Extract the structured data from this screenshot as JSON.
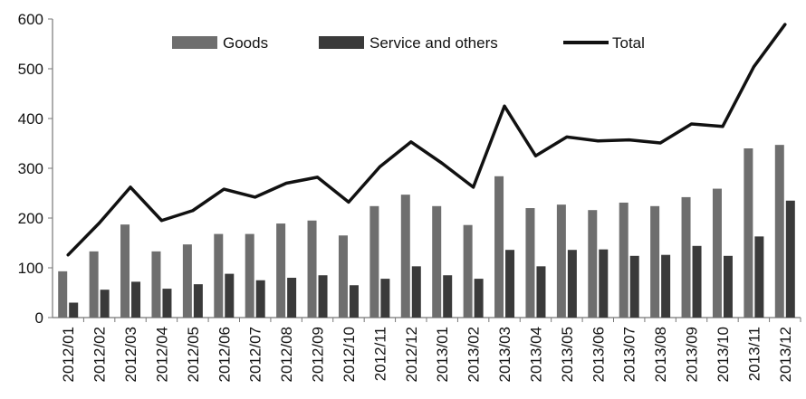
{
  "chart_data": {
    "type": "bar",
    "categories": [
      "2012/01",
      "2012/02",
      "2012/03",
      "2012/04",
      "2012/05",
      "2012/06",
      "2012/07",
      "2012/08",
      "2012/09",
      "2012/10",
      "2012/11",
      "2012/12",
      "2013/01",
      "2013/02",
      "2013/03",
      "2013/04",
      "2013/05",
      "2013/06",
      "2013/07",
      "2013/08",
      "2013/09",
      "2013/10",
      "2013/11",
      "2013/12"
    ],
    "series": [
      {
        "name": "Goods",
        "kind": "bar",
        "color": "#6e6e6e",
        "values": [
          93,
          133,
          187,
          133,
          147,
          168,
          168,
          189,
          195,
          165,
          224,
          247,
          224,
          186,
          284,
          220,
          227,
          216,
          231,
          224,
          242,
          259,
          340,
          347
        ]
      },
      {
        "name": "Service and others",
        "kind": "bar",
        "color": "#3a3a3a",
        "values": [
          30,
          56,
          72,
          58,
          67,
          88,
          75,
          80,
          85,
          65,
          78,
          103,
          85,
          78,
          136,
          103,
          136,
          137,
          124,
          126,
          144,
          124,
          163,
          235
        ]
      },
      {
        "name": "Total",
        "kind": "line",
        "color": "#111111",
        "values": [
          126,
          190,
          262,
          195,
          215,
          258,
          242,
          270,
          282,
          232,
          303,
          353,
          310,
          262,
          425,
          325,
          363,
          355,
          357,
          351,
          389,
          384,
          504,
          589
        ]
      }
    ],
    "yticks": [
      "0",
      "100",
      "200",
      "300",
      "400",
      "500",
      "600"
    ],
    "ylim": [
      0,
      600
    ],
    "grid": false,
    "legend_position": "top"
  }
}
